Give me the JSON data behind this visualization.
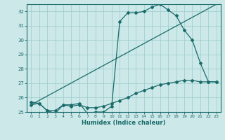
{
  "xlabel": "Humidex (Indice chaleur)",
  "bg_color": "#cce8e8",
  "grid_color": "#99cccc",
  "line_color": "#1a6b6b",
  "xlim": [
    -0.5,
    23.5
  ],
  "ylim": [
    25.0,
    32.5
  ],
  "xticks": [
    0,
    1,
    2,
    3,
    4,
    5,
    6,
    7,
    8,
    9,
    10,
    11,
    12,
    13,
    14,
    15,
    16,
    17,
    18,
    19,
    20,
    21,
    22,
    23
  ],
  "yticks": [
    25,
    26,
    27,
    28,
    29,
    30,
    31,
    32
  ],
  "line1_x": [
    0,
    1,
    2,
    3,
    4,
    5,
    6,
    7,
    8,
    9,
    10,
    11,
    12,
    13,
    14,
    15,
    16,
    17,
    18,
    19,
    20,
    21,
    22,
    23
  ],
  "line1_y": [
    25.7,
    25.6,
    25.1,
    24.9,
    25.5,
    25.5,
    25.6,
    24.9,
    25.0,
    25.0,
    25.4,
    31.3,
    31.9,
    31.9,
    32.0,
    32.3,
    32.5,
    32.1,
    31.7,
    30.7,
    30.0,
    28.4,
    27.1,
    27.1
  ],
  "line2_x": [
    0,
    1,
    2,
    3,
    4,
    5,
    6,
    7,
    8,
    9,
    10,
    11,
    12,
    13,
    14,
    15,
    16,
    17,
    18,
    19,
    20,
    21,
    22,
    23
  ],
  "line2_y": [
    25.5,
    25.6,
    25.1,
    25.1,
    25.5,
    25.4,
    25.5,
    25.3,
    25.3,
    25.4,
    25.6,
    25.8,
    26.0,
    26.3,
    26.5,
    26.7,
    26.9,
    27.0,
    27.1,
    27.2,
    27.2,
    27.1,
    27.1,
    27.1
  ],
  "line3_x": [
    0,
    23
  ],
  "line3_y": [
    25.5,
    32.5
  ]
}
